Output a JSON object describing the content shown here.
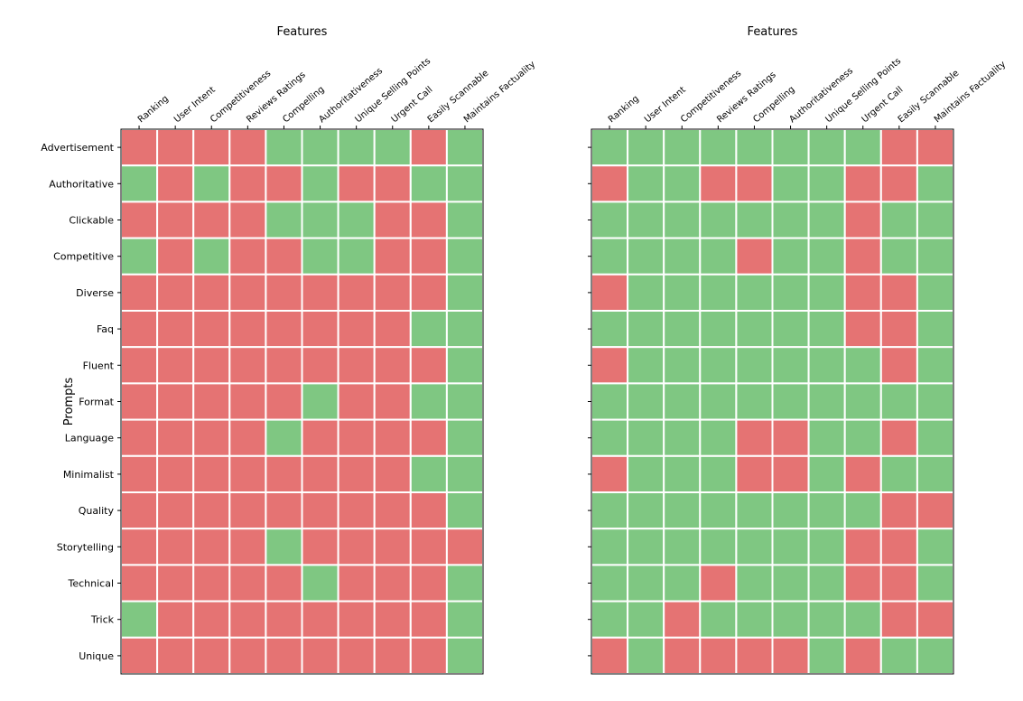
{
  "colors": {
    "positive": "#7fc782",
    "negative": "#e57373",
    "grid_line": "#ffffff",
    "frame": "#000000"
  },
  "chart_data": [
    {
      "type": "heatmap",
      "xlabel": "Features",
      "ylabel": "Prompts",
      "x_categories": [
        "Ranking",
        "User Intent",
        "Competitiveness",
        "Reviews Ratings",
        "Compelling",
        "Authoritativeness",
        "Unique Selling Points",
        "Urgent Call",
        "Easily Scannable",
        "Maintains Factuality"
      ],
      "y_categories": [
        "Advertisement",
        "Authoritative",
        "Clickable",
        "Competitive",
        "Diverse",
        "Faq",
        "Fluent",
        "Format",
        "Language",
        "Minimalist",
        "Quality",
        "Storytelling",
        "Technical",
        "Trick",
        "Unique"
      ],
      "values": [
        [
          0,
          0,
          0,
          0,
          1,
          1,
          1,
          1,
          0,
          1
        ],
        [
          1,
          0,
          1,
          0,
          0,
          1,
          0,
          0,
          1,
          1
        ],
        [
          0,
          0,
          0,
          0,
          1,
          1,
          1,
          0,
          0,
          1
        ],
        [
          1,
          0,
          1,
          0,
          0,
          1,
          1,
          0,
          0,
          1
        ],
        [
          0,
          0,
          0,
          0,
          0,
          0,
          0,
          0,
          0,
          1
        ],
        [
          0,
          0,
          0,
          0,
          0,
          0,
          0,
          0,
          1,
          1
        ],
        [
          0,
          0,
          0,
          0,
          0,
          0,
          0,
          0,
          0,
          1
        ],
        [
          0,
          0,
          0,
          0,
          0,
          1,
          0,
          0,
          1,
          1
        ],
        [
          0,
          0,
          0,
          0,
          1,
          0,
          0,
          0,
          0,
          1
        ],
        [
          0,
          0,
          0,
          0,
          0,
          0,
          0,
          0,
          1,
          1
        ],
        [
          0,
          0,
          0,
          0,
          0,
          0,
          0,
          0,
          0,
          1
        ],
        [
          0,
          0,
          0,
          0,
          1,
          0,
          0,
          0,
          0,
          0
        ],
        [
          0,
          0,
          0,
          0,
          0,
          1,
          0,
          0,
          0,
          1
        ],
        [
          1,
          0,
          0,
          0,
          0,
          0,
          0,
          0,
          0,
          1
        ],
        [
          0,
          0,
          0,
          0,
          0,
          0,
          0,
          0,
          0,
          1
        ]
      ],
      "value_colors": {
        "0": "negative",
        "1": "positive"
      },
      "show_y_tick_labels": true
    },
    {
      "type": "heatmap",
      "xlabel": "Features",
      "ylabel": "",
      "x_categories": [
        "Ranking",
        "User Intent",
        "Competitiveness",
        "Reviews Ratings",
        "Compelling",
        "Authoritativeness",
        "Unique Selling Points",
        "Urgent Call",
        "Easily Scannable",
        "Maintains Factuality"
      ],
      "y_categories": [
        "Advertisement",
        "Authoritative",
        "Clickable",
        "Competitive",
        "Diverse",
        "Faq",
        "Fluent",
        "Format",
        "Language",
        "Minimalist",
        "Quality",
        "Storytelling",
        "Technical",
        "Trick",
        "Unique"
      ],
      "values": [
        [
          1,
          1,
          1,
          1,
          1,
          1,
          1,
          1,
          0,
          0
        ],
        [
          0,
          1,
          1,
          0,
          0,
          1,
          1,
          0,
          0,
          1
        ],
        [
          1,
          1,
          1,
          1,
          1,
          1,
          1,
          0,
          1,
          1
        ],
        [
          1,
          1,
          1,
          1,
          0,
          1,
          1,
          0,
          1,
          1
        ],
        [
          0,
          1,
          1,
          1,
          1,
          1,
          1,
          0,
          0,
          1
        ],
        [
          1,
          1,
          1,
          1,
          1,
          1,
          1,
          0,
          0,
          1
        ],
        [
          0,
          1,
          1,
          1,
          1,
          1,
          1,
          1,
          0,
          1
        ],
        [
          1,
          1,
          1,
          1,
          1,
          1,
          1,
          1,
          1,
          1
        ],
        [
          1,
          1,
          1,
          1,
          0,
          0,
          1,
          1,
          0,
          1
        ],
        [
          0,
          1,
          1,
          1,
          0,
          0,
          1,
          0,
          1,
          1
        ],
        [
          1,
          1,
          1,
          1,
          1,
          1,
          1,
          1,
          0,
          0
        ],
        [
          1,
          1,
          1,
          1,
          1,
          1,
          1,
          0,
          0,
          1
        ],
        [
          1,
          1,
          1,
          0,
          1,
          1,
          1,
          0,
          0,
          1
        ],
        [
          1,
          1,
          0,
          1,
          1,
          1,
          1,
          1,
          0,
          0
        ],
        [
          0,
          1,
          0,
          0,
          0,
          0,
          1,
          0,
          1,
          1
        ]
      ],
      "value_colors": {
        "0": "negative",
        "1": "positive"
      },
      "show_y_tick_labels": false
    }
  ]
}
